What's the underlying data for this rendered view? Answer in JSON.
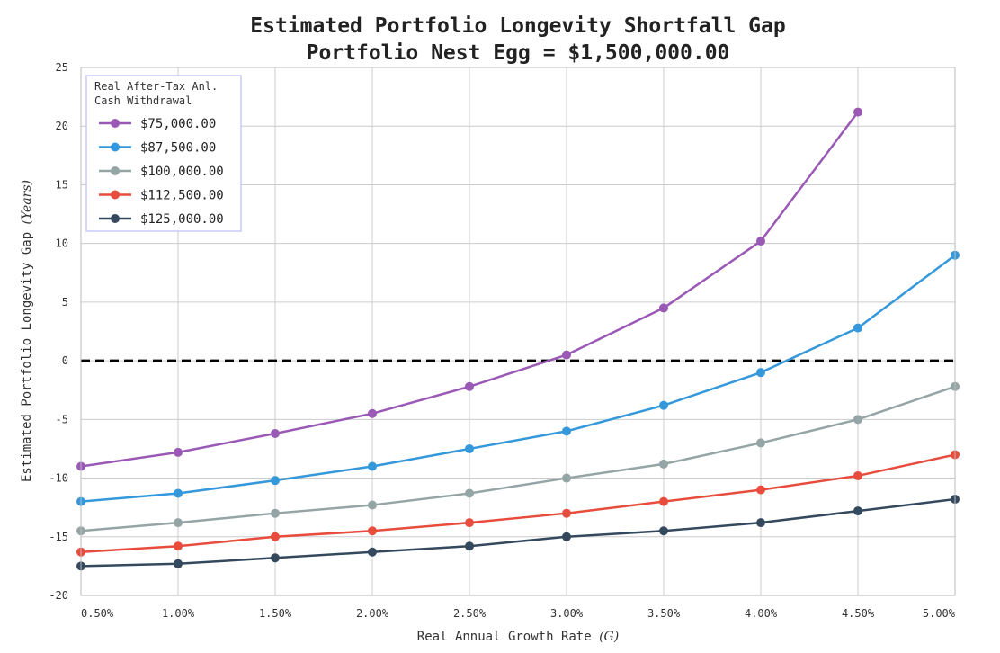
{
  "chart_data": {
    "type": "line",
    "title": "Estimated Portfolio Longevity Shortfall Gap",
    "subtitle": "Portfolio Nest Egg = $1,500,000.00",
    "xlabel": "Real Annual Growth Rate ",
    "xlabel_symbol": "(G)",
    "ylabel": "Estimated Portfolio Longevity Gap ",
    "ylabel_symbol": "(Years)",
    "x": [
      0.5,
      1.0,
      1.5,
      2.0,
      2.5,
      3.0,
      3.5,
      4.0,
      4.5,
      5.0
    ],
    "xlim": [
      0.5,
      5.0
    ],
    "ylim": [
      -20,
      25
    ],
    "x_ticks": [
      "0.50%",
      "1.00%",
      "1.50%",
      "2.00%",
      "2.50%",
      "3.00%",
      "3.50%",
      "4.00%",
      "4.50%",
      "5.00%"
    ],
    "y_ticks": [
      -20,
      -15,
      -10,
      -5,
      0,
      5,
      10,
      15,
      20,
      25
    ],
    "grid": true,
    "reference_line": {
      "y": 0,
      "style": "dashed",
      "color": "#000000"
    },
    "legend": {
      "title_line1": "Real After-Tax Anl.",
      "title_line2": "Cash Withdrawal",
      "position": "top-left"
    },
    "series": [
      {
        "name": "$75,000.00",
        "color": "#9b59b6",
        "values": [
          -9.0,
          -7.8,
          -6.2,
          -4.5,
          -2.2,
          0.5,
          4.5,
          10.2,
          21.2,
          null
        ]
      },
      {
        "name": "$87,500.00",
        "color": "#3498db",
        "values": [
          -12.0,
          -11.3,
          -10.2,
          -9.0,
          -7.5,
          -6.0,
          -3.8,
          -1.0,
          2.8,
          9.0
        ]
      },
      {
        "name": "$100,000.00",
        "color": "#95a5a6",
        "values": [
          -14.5,
          -13.8,
          -13.0,
          -12.3,
          -11.3,
          -10.0,
          -8.8,
          -7.0,
          -5.0,
          -2.2
        ]
      },
      {
        "name": "$112,500.00",
        "color": "#e74c3c",
        "values": [
          -16.3,
          -15.8,
          -15.0,
          -14.5,
          -13.8,
          -13.0,
          -12.0,
          -11.0,
          -9.8,
          -8.0
        ]
      },
      {
        "name": "$125,000.00",
        "color": "#34495e",
        "values": [
          -17.5,
          -17.3,
          -16.8,
          -16.3,
          -15.8,
          -15.0,
          -14.5,
          -13.8,
          -12.8,
          -11.8
        ]
      }
    ]
  }
}
